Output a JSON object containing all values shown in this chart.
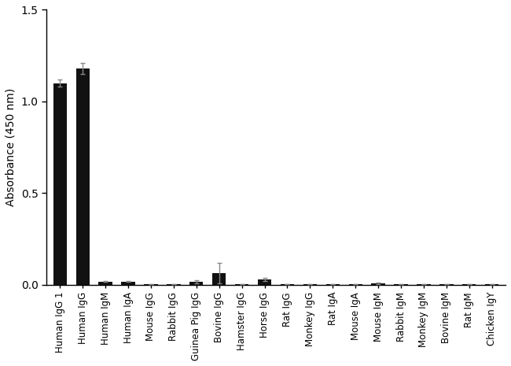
{
  "categories": [
    "Human IgG 1",
    "Human IgG",
    "Human IgM",
    "Human IgA",
    "Mouse IgG",
    "Rabbit IgG",
    "Guinea Pig IgG",
    "Bovine IgG",
    "Hamster IgG",
    "Horse IgG",
    "Rat IgG",
    "Monkey IgG",
    "Rat IgA",
    "Mouse IgA",
    "Mouse IgM",
    "Rabbit IgM",
    "Monkey IgM",
    "Bovine IgM",
    "Rat IgM",
    "Chicken IgY"
  ],
  "values": [
    1.1,
    1.18,
    0.018,
    0.018,
    0.005,
    0.005,
    0.018,
    0.065,
    0.005,
    0.03,
    0.005,
    0.005,
    0.005,
    0.005,
    0.008,
    0.005,
    0.005,
    0.005,
    0.005,
    0.005
  ],
  "errors": [
    0.018,
    0.03,
    0.003,
    0.003,
    0.001,
    0.001,
    0.008,
    0.055,
    0.001,
    0.008,
    0.001,
    0.001,
    0.001,
    0.001,
    0.003,
    0.001,
    0.001,
    0.001,
    0.001,
    0.001
  ],
  "bar_color": "#111111",
  "error_color": "#888888",
  "ylabel": "Absorbance (450 nm)",
  "ylim": [
    0,
    1.5
  ],
  "yticks": [
    0.0,
    0.5,
    1.0,
    1.5
  ],
  "background_color": "#ffffff",
  "bar_width": 0.6,
  "label_fontsize": 8.5,
  "ylabel_fontsize": 10
}
